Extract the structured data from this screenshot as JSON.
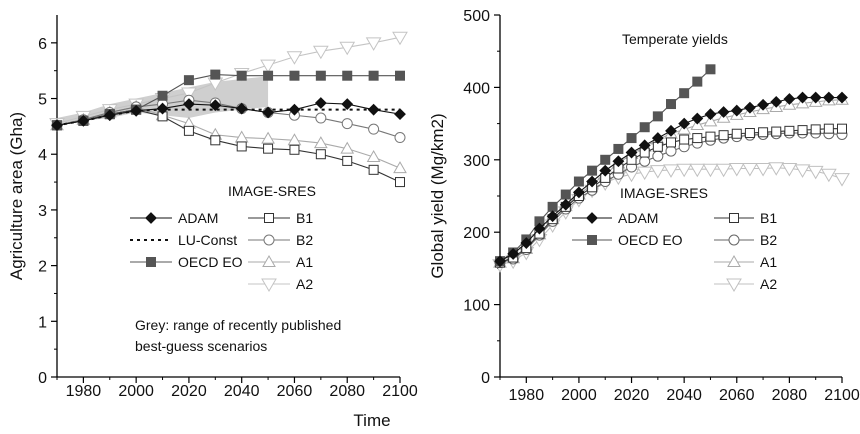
{
  "chart_data": [
    {
      "type": "line",
      "title": "",
      "xlabel": "Time",
      "ylabel": "Agriculture area (Gha)",
      "xlim": [
        1970,
        2100
      ],
      "ylim": [
        0,
        6.5
      ],
      "xticks": [
        "1980",
        "2000",
        "2020",
        "2040",
        "2060",
        "2080",
        "2100"
      ],
      "yticks": [
        "0",
        "1",
        "2",
        "3",
        "4",
        "5",
        "6"
      ],
      "legend_title": "IMAGE-SRES",
      "note_lines": [
        "Grey: range of recently published",
        "best-guess scenarios"
      ],
      "grey_range": {
        "x": [
          1970,
          1980,
          1990,
          2000,
          2010,
          2020,
          2030,
          2040,
          2050
        ],
        "lower": [
          4.55,
          4.6,
          4.65,
          4.75,
          4.7,
          4.65,
          4.75,
          4.8,
          4.85
        ],
        "upper": [
          4.65,
          4.75,
          4.9,
          5.0,
          5.1,
          5.2,
          5.3,
          5.35,
          5.4
        ]
      },
      "series": [
        {
          "name": "ADAM",
          "marker": "diamond-filled",
          "color": "#111111",
          "x": [
            1970,
            1980,
            1990,
            2000,
            2010,
            2020,
            2030,
            2040,
            2050,
            2060,
            2070,
            2080,
            2090,
            2100
          ],
          "y": [
            4.52,
            4.6,
            4.7,
            4.78,
            4.82,
            4.9,
            4.88,
            4.82,
            4.75,
            4.8,
            4.92,
            4.9,
            4.8,
            4.72
          ]
        },
        {
          "name": "LU-Const",
          "marker": "none",
          "color": "#111111",
          "dash": "3,4",
          "x": [
            1970,
            1980,
            1990,
            2000,
            2010,
            2020,
            2030,
            2040,
            2050,
            2060,
            2070,
            2080,
            2090,
            2100
          ],
          "y": [
            4.52,
            4.6,
            4.7,
            4.78,
            4.8,
            4.8,
            4.8,
            4.8,
            4.8,
            4.8,
            4.8,
            4.8,
            4.8,
            4.8
          ]
        },
        {
          "name": "OECD EO",
          "marker": "square-filled",
          "color": "#555555",
          "x": [
            1970,
            1980,
            1990,
            2000,
            2010,
            2020,
            2030,
            2040,
            2050,
            2060,
            2070,
            2080,
            2090,
            2100
          ],
          "y": [
            4.52,
            4.6,
            4.72,
            4.8,
            5.05,
            5.33,
            5.43,
            5.41,
            5.41,
            5.41,
            5.41,
            5.41,
            5.41,
            5.41
          ]
        },
        {
          "name": "B1",
          "marker": "square-open",
          "color": "#333333",
          "x": [
            1970,
            1980,
            1990,
            2000,
            2010,
            2020,
            2030,
            2040,
            2050,
            2060,
            2070,
            2080,
            2090,
            2100
          ],
          "y": [
            4.52,
            4.6,
            4.72,
            4.8,
            4.68,
            4.42,
            4.25,
            4.14,
            4.1,
            4.08,
            4.0,
            3.88,
            3.72,
            3.5
          ]
        },
        {
          "name": "B2",
          "marker": "circle-open",
          "color": "#777777",
          "x": [
            1970,
            1980,
            1990,
            2000,
            2010,
            2020,
            2030,
            2040,
            2050,
            2060,
            2070,
            2080,
            2090,
            2100
          ],
          "y": [
            4.52,
            4.62,
            4.75,
            4.85,
            4.9,
            4.97,
            4.92,
            4.82,
            4.75,
            4.7,
            4.65,
            4.55,
            4.45,
            4.3
          ]
        },
        {
          "name": "A1",
          "marker": "triangle-up-open",
          "color": "#aaaaaa",
          "x": [
            1970,
            1980,
            1990,
            2000,
            2010,
            2020,
            2030,
            2040,
            2050,
            2060,
            2070,
            2080,
            2090,
            2100
          ],
          "y": [
            4.52,
            4.62,
            4.75,
            4.85,
            4.7,
            4.55,
            4.35,
            4.3,
            4.28,
            4.25,
            4.2,
            4.1,
            3.95,
            3.75
          ]
        },
        {
          "name": "A2",
          "marker": "triangle-down-open",
          "color": "#c4c4c4",
          "x": [
            1970,
            1980,
            1990,
            2000,
            2010,
            2020,
            2030,
            2040,
            2050,
            2060,
            2070,
            2080,
            2090,
            2100
          ],
          "y": [
            4.55,
            4.68,
            4.8,
            4.9,
            5.0,
            5.1,
            5.28,
            5.45,
            5.6,
            5.75,
            5.85,
            5.92,
            6.0,
            6.1
          ]
        }
      ]
    },
    {
      "type": "line",
      "title": "Temperate yields",
      "xlabel": "",
      "ylabel": "Global yield (Mg/km2)",
      "xlim": [
        1970,
        2100
      ],
      "ylim": [
        0,
        500
      ],
      "xticks": [
        "1980",
        "2000",
        "2020",
        "2040",
        "2060",
        "2080",
        "2100"
      ],
      "yticks": [
        "0",
        "100",
        "200",
        "300",
        "400",
        "500"
      ],
      "legend_title": "IMAGE-SRES",
      "series": [
        {
          "name": "ADAM",
          "marker": "diamond-filled",
          "color": "#111111",
          "x": [
            1970,
            1975,
            1980,
            1985,
            1990,
            1995,
            2000,
            2005,
            2010,
            2015,
            2020,
            2025,
            2030,
            2035,
            2040,
            2045,
            2050,
            2055,
            2060,
            2065,
            2070,
            2075,
            2080,
            2085,
            2090,
            2095,
            2100
          ],
          "y": [
            160,
            170,
            185,
            205,
            222,
            238,
            255,
            270,
            285,
            298,
            310,
            320,
            330,
            340,
            350,
            357,
            363,
            366,
            368,
            372,
            376,
            380,
            384,
            386,
            386,
            386,
            386
          ]
        },
        {
          "name": "OECD EO",
          "marker": "square-filled",
          "color": "#555555",
          "x": [
            1970,
            1975,
            1980,
            1985,
            1990,
            1995,
            2000,
            2005,
            2010,
            2015,
            2020,
            2025,
            2030,
            2035,
            2040,
            2045,
            2050
          ],
          "y": [
            160,
            172,
            190,
            215,
            235,
            252,
            270,
            285,
            300,
            315,
            330,
            345,
            360,
            377,
            392,
            408,
            425
          ]
        },
        {
          "name": "B1",
          "marker": "square-open",
          "color": "#333333",
          "x": [
            1970,
            1975,
            1980,
            1985,
            1990,
            1995,
            2000,
            2005,
            2010,
            2015,
            2020,
            2025,
            2030,
            2035,
            2040,
            2045,
            2050,
            2055,
            2060,
            2065,
            2070,
            2075,
            2080,
            2085,
            2090,
            2095,
            2100
          ],
          "y": [
            158,
            165,
            178,
            198,
            218,
            235,
            250,
            262,
            275,
            288,
            300,
            310,
            318,
            324,
            328,
            330,
            332,
            334,
            336,
            337,
            338,
            339,
            340,
            341,
            342,
            343,
            343
          ]
        },
        {
          "name": "B2",
          "marker": "circle-open",
          "color": "#666666",
          "x": [
            1970,
            1975,
            1980,
            1985,
            1990,
            1995,
            2000,
            2005,
            2010,
            2015,
            2020,
            2025,
            2030,
            2035,
            2040,
            2045,
            2050,
            2055,
            2060,
            2065,
            2070,
            2075,
            2080,
            2085,
            2090,
            2095,
            2100
          ],
          "y": [
            158,
            163,
            176,
            196,
            215,
            232,
            247,
            258,
            270,
            280,
            290,
            298,
            305,
            312,
            318,
            323,
            327,
            330,
            332,
            334,
            335,
            336,
            337,
            337,
            337,
            336,
            335
          ]
        },
        {
          "name": "A1",
          "marker": "triangle-up-open",
          "color": "#aaaaaa",
          "x": [
            1970,
            1975,
            1980,
            1985,
            1990,
            1995,
            2000,
            2005,
            2010,
            2015,
            2020,
            2025,
            2030,
            2035,
            2040,
            2045,
            2050,
            2055,
            2060,
            2065,
            2070,
            2075,
            2080,
            2085,
            2090,
            2095,
            2100
          ],
          "y": [
            158,
            164,
            177,
            197,
            218,
            236,
            252,
            266,
            280,
            295,
            308,
            318,
            328,
            336,
            342,
            348,
            353,
            358,
            362,
            366,
            370,
            373,
            376,
            378,
            380,
            382,
            383
          ]
        },
        {
          "name": "A2",
          "marker": "triangle-down-open",
          "color": "#c0c0c0",
          "x": [
            1970,
            1975,
            1980,
            1985,
            1990,
            1995,
            2000,
            2005,
            2010,
            2015,
            2020,
            2025,
            2030,
            2035,
            2040,
            2045,
            2050,
            2055,
            2060,
            2065,
            2070,
            2075,
            2080,
            2085,
            2090,
            2095,
            2100
          ],
          "y": [
            155,
            160,
            172,
            190,
            210,
            228,
            245,
            258,
            268,
            276,
            280,
            283,
            285,
            286,
            287,
            287,
            287,
            287,
            288,
            288,
            288,
            289,
            288,
            286,
            284,
            280,
            274
          ]
        }
      ]
    }
  ]
}
